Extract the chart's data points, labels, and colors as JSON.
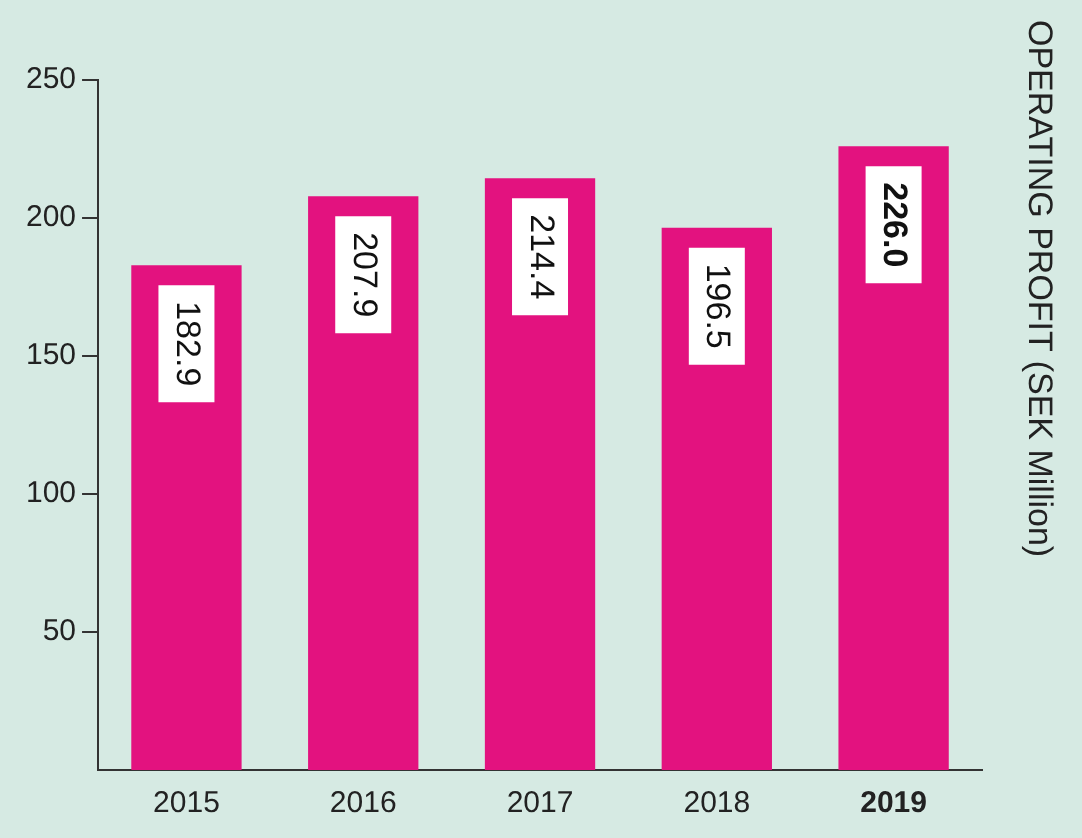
{
  "chart_data": {
    "type": "bar",
    "ylabel": "OPERATING PROFIT (SEK Million)",
    "categories": [
      "2015",
      "2016",
      "2017",
      "2018",
      "2019"
    ],
    "values": [
      182.9,
      207.9,
      214.4,
      196.5,
      226.0
    ],
    "value_labels": [
      "182.9",
      "207.9",
      "214.4",
      "196.5",
      "226.0"
    ],
    "color": "#e3127f",
    "ylim": [
      0,
      250
    ],
    "yticks": [
      50,
      100,
      150,
      200,
      250
    ],
    "grid": false,
    "legend": false
  }
}
